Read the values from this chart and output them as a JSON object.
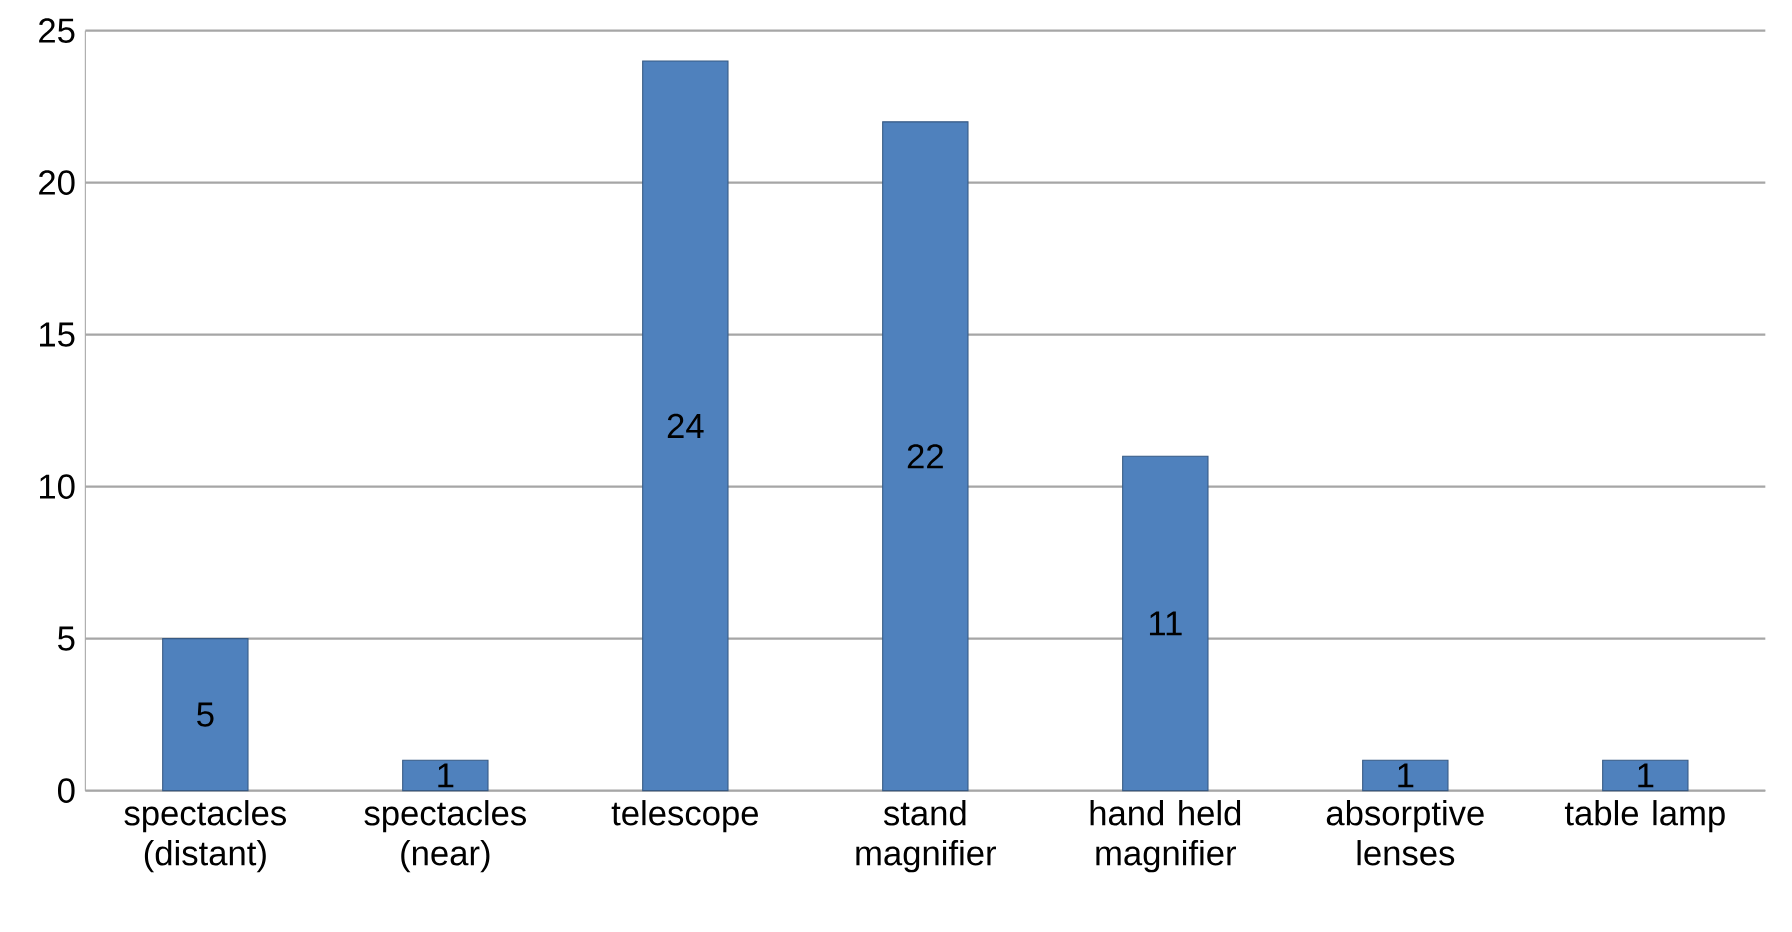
{
  "chart_data": {
    "type": "bar",
    "categories": [
      "spectacles (distant)",
      "spectacles (near)",
      "telescope",
      "stand magnifier",
      "hand held magnifier",
      "absorptive lenses",
      "table lamp"
    ],
    "values": [
      5,
      1,
      24,
      22,
      11,
      1,
      1
    ],
    "color": "#4f81bd",
    "ylim": [
      0,
      25
    ],
    "yticks": [
      0,
      5,
      10,
      15,
      20,
      25
    ],
    "grid": "y",
    "data_labels": true
  }
}
